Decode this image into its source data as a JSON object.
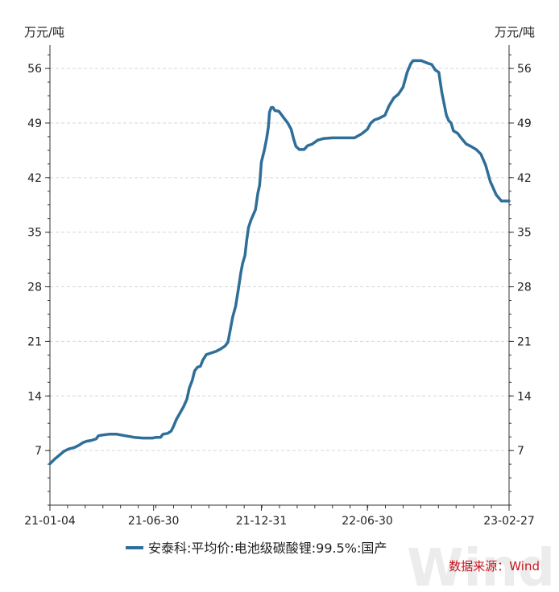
{
  "chart_data": {
    "type": "line",
    "left_unit": "万元/吨",
    "right_unit": "万元/吨",
    "ylim": [
      0,
      59
    ],
    "yticks": [
      7,
      14,
      21,
      28,
      35,
      42,
      49,
      56
    ],
    "xtick_labels": [
      "21-01-04",
      "21-06-30",
      "21-12-31",
      "22-06-30",
      "23-02-27"
    ],
    "xtick_dates": [
      "2021-01-04",
      "2021-06-30",
      "2021-12-31",
      "2022-06-30",
      "2023-02-27"
    ],
    "x_range": [
      "2021-01-04",
      "2023-02-27"
    ],
    "grid": "horizontal-dashed",
    "legend_position": "bottom",
    "series": [
      {
        "name": "安泰科:平均价:电池级碳酸锂:99.5%:国产",
        "color": "#2e6e98",
        "points": [
          [
            "2021-01-04",
            5.3
          ],
          [
            "2021-01-12",
            5.9
          ],
          [
            "2021-01-20",
            6.4
          ],
          [
            "2021-01-28",
            6.9
          ],
          [
            "2021-02-05",
            7.2
          ],
          [
            "2021-02-15",
            7.4
          ],
          [
            "2021-02-23",
            7.7
          ],
          [
            "2021-03-01",
            8.0
          ],
          [
            "2021-03-08",
            8.2
          ],
          [
            "2021-03-16",
            8.3
          ],
          [
            "2021-03-24",
            8.5
          ],
          [
            "2021-03-28",
            8.9
          ],
          [
            "2021-04-05",
            9.0
          ],
          [
            "2021-04-15",
            9.1
          ],
          [
            "2021-04-28",
            9.1
          ],
          [
            "2021-05-12",
            8.9
          ],
          [
            "2021-05-28",
            8.7
          ],
          [
            "2021-06-12",
            8.6
          ],
          [
            "2021-06-28",
            8.6
          ],
          [
            "2021-07-05",
            8.7
          ],
          [
            "2021-07-12",
            8.7
          ],
          [
            "2021-07-16",
            9.1
          ],
          [
            "2021-07-24",
            9.2
          ],
          [
            "2021-07-30",
            9.5
          ],
          [
            "2021-08-03",
            10.1
          ],
          [
            "2021-08-08",
            11.0
          ],
          [
            "2021-08-14",
            11.8
          ],
          [
            "2021-08-20",
            12.6
          ],
          [
            "2021-08-26",
            13.6
          ],
          [
            "2021-08-30",
            15.0
          ],
          [
            "2021-09-04",
            16.0
          ],
          [
            "2021-09-08",
            17.2
          ],
          [
            "2021-09-13",
            17.7
          ],
          [
            "2021-09-18",
            17.8
          ],
          [
            "2021-09-22",
            18.6
          ],
          [
            "2021-09-28",
            19.3
          ],
          [
            "2021-10-06",
            19.5
          ],
          [
            "2021-10-14",
            19.7
          ],
          [
            "2021-10-22",
            20.0
          ],
          [
            "2021-10-30",
            20.4
          ],
          [
            "2021-11-04",
            20.9
          ],
          [
            "2021-11-08",
            22.5
          ],
          [
            "2021-11-12",
            24.1
          ],
          [
            "2021-11-17",
            25.5
          ],
          [
            "2021-11-22",
            27.8
          ],
          [
            "2021-11-26",
            29.8
          ],
          [
            "2021-11-29",
            31.0
          ],
          [
            "2021-12-03",
            32.0
          ],
          [
            "2021-12-06",
            34.0
          ],
          [
            "2021-12-09",
            35.6
          ],
          [
            "2021-12-13",
            36.5
          ],
          [
            "2021-12-17",
            37.2
          ],
          [
            "2021-12-21",
            37.9
          ],
          [
            "2021-12-25",
            40.0
          ],
          [
            "2021-12-28",
            41.0
          ],
          [
            "2021-12-31",
            44.0
          ],
          [
            "2022-01-05",
            45.5
          ],
          [
            "2022-01-09",
            47.0
          ],
          [
            "2022-01-12",
            48.5
          ],
          [
            "2022-01-14",
            50.4
          ],
          [
            "2022-01-17",
            51.0
          ],
          [
            "2022-01-20",
            51.0
          ],
          [
            "2022-01-23",
            50.6
          ],
          [
            "2022-01-30",
            50.5
          ],
          [
            "2022-02-07",
            49.7
          ],
          [
            "2022-02-14",
            49.0
          ],
          [
            "2022-02-20",
            48.2
          ],
          [
            "2022-02-24",
            47.0
          ],
          [
            "2022-02-28",
            46.0
          ],
          [
            "2022-03-06",
            45.6
          ],
          [
            "2022-03-14",
            45.6
          ],
          [
            "2022-03-20",
            46.1
          ],
          [
            "2022-03-28",
            46.3
          ],
          [
            "2022-04-06",
            46.8
          ],
          [
            "2022-04-16",
            47.0
          ],
          [
            "2022-05-01",
            47.1
          ],
          [
            "2022-05-20",
            47.1
          ],
          [
            "2022-06-08",
            47.1
          ],
          [
            "2022-06-20",
            47.6
          ],
          [
            "2022-06-30",
            48.2
          ],
          [
            "2022-07-06",
            49.0
          ],
          [
            "2022-07-12",
            49.4
          ],
          [
            "2022-07-20",
            49.6
          ],
          [
            "2022-07-30",
            50.0
          ],
          [
            "2022-08-06",
            51.2
          ],
          [
            "2022-08-14",
            52.2
          ],
          [
            "2022-08-22",
            52.7
          ],
          [
            "2022-08-30",
            53.6
          ],
          [
            "2022-09-06",
            55.5
          ],
          [
            "2022-09-12",
            56.6
          ],
          [
            "2022-09-16",
            57.0
          ],
          [
            "2022-09-30",
            57.0
          ],
          [
            "2022-10-10",
            56.7
          ],
          [
            "2022-10-18",
            56.5
          ],
          [
            "2022-10-24",
            55.8
          ],
          [
            "2022-10-30",
            55.5
          ],
          [
            "2022-11-04",
            53.0
          ],
          [
            "2022-11-08",
            51.5
          ],
          [
            "2022-11-12",
            50.0
          ],
          [
            "2022-11-16",
            49.3
          ],
          [
            "2022-11-20",
            49.0
          ],
          [
            "2022-11-24",
            48.0
          ],
          [
            "2022-12-01",
            47.7
          ],
          [
            "2022-12-08",
            47.0
          ],
          [
            "2022-12-16",
            46.3
          ],
          [
            "2022-12-24",
            46.0
          ],
          [
            "2023-01-02",
            45.6
          ],
          [
            "2023-01-10",
            45.0
          ],
          [
            "2023-01-18",
            43.6
          ],
          [
            "2023-01-26",
            41.5
          ],
          [
            "2023-02-05",
            39.8
          ],
          [
            "2023-02-14",
            39.0
          ],
          [
            "2023-02-27",
            39.0
          ]
        ]
      }
    ]
  },
  "legend": {
    "label": "安泰科:平均价:电池级碳酸锂:99.5%:国产"
  },
  "source": {
    "text": "数据来源：Wind"
  },
  "watermark": {
    "text": "Wind"
  }
}
